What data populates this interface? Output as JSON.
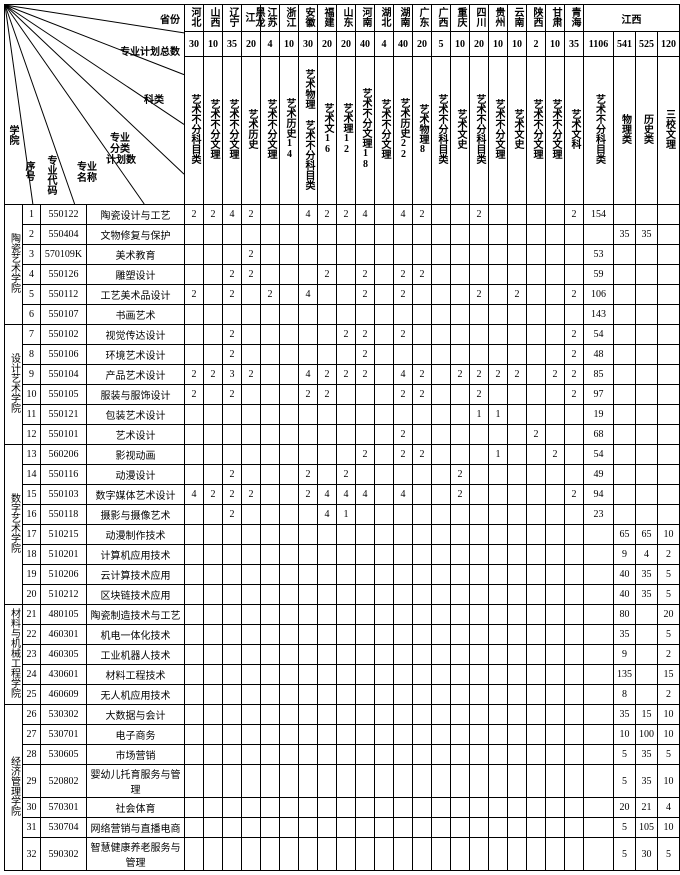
{
  "header_labels": {
    "province": "省份",
    "plan_total": "专业计划总数",
    "category": "科类",
    "sub_plan": "专业分类计划数",
    "major_name": "专业名称",
    "college": "学院",
    "seq": "序号",
    "code": "专业代码"
  },
  "provinces": [
    "河北",
    "山西",
    "辽宁",
    "黑龙江",
    "江苏",
    "浙江",
    "安徽",
    "福建",
    "山东",
    "河南",
    "湖北",
    "湖南",
    "广东",
    "广西",
    "重庆",
    "四川",
    "贵州",
    "云南",
    "陕西",
    "甘肃",
    "青海",
    "江西"
  ],
  "totals": [
    "30",
    "10",
    "35",
    "20",
    "4",
    "10",
    "30",
    "20",
    "20",
    "40",
    "4",
    "40",
    "20",
    "5",
    "10",
    "20",
    "10",
    "10",
    "2",
    "10",
    "35",
    "1106",
    "541",
    "525",
    "120"
  ],
  "categories": [
    "艺术不分科目类",
    "艺术不分文理",
    "艺术不分文理",
    "艺术历史",
    "艺术不分文理",
    "艺术历史14",
    "艺术物理 艺术不分科目类",
    "艺术文16",
    "艺术理12",
    "艺术不分文理18",
    "艺术不分文理",
    "艺术历史22",
    "艺术物理8",
    "艺术不分科目类",
    "艺术文史",
    "艺术不分科目类",
    "艺术不分文理",
    "艺术文史",
    "艺术不分文理",
    "艺术不分文理",
    "艺术文科",
    "艺术不分科目类",
    "物理类",
    "历史类",
    "三校文理"
  ],
  "colleges": [
    {
      "name": "陶瓷艺术学院",
      "rowspan": 6,
      "rows": [
        {
          "seq": 1,
          "code": "550122",
          "name": "陶瓷设计与工艺",
          "cells": [
            "2",
            "2",
            "4",
            "2",
            "",
            "",
            "4",
            "2",
            "2",
            "4",
            "",
            "4",
            "2",
            "",
            "",
            "2",
            "",
            "",
            "",
            "",
            "2",
            "154",
            "",
            "",
            ""
          ]
        },
        {
          "seq": 2,
          "code": "550404",
          "name": "文物修复与保护",
          "cells": [
            "",
            "",
            "",
            "",
            "",
            "",
            "",
            "",
            "",
            "",
            "",
            "",
            "",
            "",
            "",
            "",
            "",
            "",
            "",
            "",
            "",
            "",
            "35",
            "35",
            ""
          ]
        },
        {
          "seq": 3,
          "code": "570109K",
          "name": "美术教育",
          "cells": [
            "",
            "",
            "",
            "2",
            "",
            "",
            "",
            "",
            "",
            "",
            "",
            "",
            "",
            "",
            "",
            "",
            "",
            "",
            "",
            "",
            "",
            "53",
            "",
            "",
            ""
          ]
        },
        {
          "seq": 4,
          "code": "550126",
          "name": "雕塑设计",
          "cells": [
            "",
            "",
            "2",
            "2",
            "",
            "",
            "",
            "2",
            "",
            "2",
            "",
            "2",
            "2",
            "",
            "",
            "",
            "",
            "",
            "",
            "",
            "",
            "59",
            "",
            "",
            ""
          ]
        },
        {
          "seq": 5,
          "code": "550112",
          "name": "工艺美术品设计",
          "cells": [
            "2",
            "",
            "2",
            "",
            "2",
            "",
            "4",
            "",
            "",
            "2",
            "",
            "2",
            "",
            "",
            "",
            "2",
            "",
            "2",
            "",
            "",
            "2",
            "106",
            "",
            "",
            ""
          ]
        },
        {
          "seq": 6,
          "code": "550107",
          "name": "书画艺术",
          "cells": [
            "",
            "",
            "",
            "",
            "",
            "",
            "",
            "",
            "",
            "",
            "",
            "",
            "",
            "",
            "",
            "",
            "",
            "",
            "",
            "",
            "",
            "143",
            "",
            "",
            ""
          ]
        }
      ]
    },
    {
      "name": "设计艺术学院",
      "rowspan": 6,
      "rows": [
        {
          "seq": 7,
          "code": "550102",
          "name": "视觉传达设计",
          "cells": [
            "",
            "",
            "2",
            "",
            "",
            "",
            "",
            "",
            "2",
            "2",
            "",
            "2",
            "",
            "",
            "",
            "",
            "",
            "",
            "",
            "",
            "2",
            "54",
            "",
            "",
            ""
          ]
        },
        {
          "seq": 8,
          "code": "550106",
          "name": "环境艺术设计",
          "cells": [
            "",
            "",
            "2",
            "",
            "",
            "",
            "",
            "",
            "",
            "2",
            "",
            "",
            "",
            "",
            "",
            "",
            "",
            "",
            "",
            "",
            "2",
            "48",
            "",
            "",
            ""
          ]
        },
        {
          "seq": 9,
          "code": "550104",
          "name": "产品艺术设计",
          "cells": [
            "2",
            "2",
            "3",
            "2",
            "",
            "",
            "4",
            "2",
            "2",
            "2",
            "",
            "4",
            "2",
            "",
            "2",
            "2",
            "2",
            "2",
            "",
            "2",
            "2",
            "85",
            "",
            "",
            ""
          ]
        },
        {
          "seq": 10,
          "code": "550105",
          "name": "服装与服饰设计",
          "cells": [
            "2",
            "",
            "2",
            "",
            "",
            "",
            "2",
            "2",
            "",
            "",
            "",
            "2",
            "2",
            "",
            "",
            "2",
            "",
            "",
            "",
            "",
            "2",
            "97",
            "",
            "",
            ""
          ]
        },
        {
          "seq": 11,
          "code": "550121",
          "name": "包装艺术设计",
          "cells": [
            "",
            "",
            "",
            "",
            "",
            "",
            "",
            "",
            "",
            "",
            "",
            "",
            "",
            "",
            "",
            "1",
            "1",
            "",
            "",
            "",
            "",
            "19",
            "",
            "",
            ""
          ]
        },
        {
          "seq": 12,
          "code": "550101",
          "name": "艺术设计",
          "cells": [
            "",
            "",
            "",
            "",
            "",
            "",
            "",
            "",
            "",
            "",
            "",
            "2",
            "",
            "",
            "",
            "",
            "",
            "",
            "2",
            "",
            "",
            "68",
            "",
            "",
            ""
          ]
        }
      ]
    },
    {
      "name": "数字艺术学院",
      "rowspan": 8,
      "rows": [
        {
          "seq": 13,
          "code": "560206",
          "name": "影视动画",
          "cells": [
            "",
            "",
            "",
            "",
            "",
            "",
            "",
            "",
            "",
            "2",
            "",
            "2",
            "2",
            "",
            "",
            "",
            "1",
            "",
            "",
            "2",
            "",
            "54",
            "",
            "",
            ""
          ]
        },
        {
          "seq": 14,
          "code": "550116",
          "name": "动漫设计",
          "cells": [
            "",
            "",
            "2",
            "",
            "",
            "",
            "2",
            "",
            "2",
            "",
            "",
            "",
            "",
            "",
            "2",
            "",
            "",
            "",
            "",
            "",
            "",
            "49",
            "",
            "",
            ""
          ]
        },
        {
          "seq": 15,
          "code": "550103",
          "name": "数字媒体艺术设计",
          "cells": [
            "4",
            "2",
            "2",
            "2",
            "",
            "",
            "2",
            "4",
            "4",
            "4",
            "",
            "4",
            "",
            "",
            "2",
            "",
            "",
            "",
            "",
            "",
            "2",
            "94",
            "",
            "",
            ""
          ]
        },
        {
          "seq": 16,
          "code": "550118",
          "name": "摄影与摄像艺术",
          "cells": [
            "",
            "",
            "2",
            "",
            "",
            "",
            "",
            "4",
            "1",
            "",
            "",
            "",
            "",
            "",
            "",
            "",
            "",
            "",
            "",
            "",
            "",
            "23",
            "",
            "",
            ""
          ]
        },
        {
          "seq": 17,
          "code": "510215",
          "name": "动漫制作技术",
          "cells": [
            "",
            "",
            "",
            "",
            "",
            "",
            "",
            "",
            "",
            "",
            "",
            "",
            "",
            "",
            "",
            "",
            "",
            "",
            "",
            "",
            "",
            "",
            "65",
            "65",
            "10"
          ]
        },
        {
          "seq": 18,
          "code": "510201",
          "name": "计算机应用技术",
          "cells": [
            "",
            "",
            "",
            "",
            "",
            "",
            "",
            "",
            "",
            "",
            "",
            "",
            "",
            "",
            "",
            "",
            "",
            "",
            "",
            "",
            "",
            "",
            "9",
            "4",
            "2"
          ]
        },
        {
          "seq": 19,
          "code": "510206",
          "name": "云计算技术应用",
          "cells": [
            "",
            "",
            "",
            "",
            "",
            "",
            "",
            "",
            "",
            "",
            "",
            "",
            "",
            "",
            "",
            "",
            "",
            "",
            "",
            "",
            "",
            "",
            "40",
            "35",
            "5"
          ]
        },
        {
          "seq": 20,
          "code": "510212",
          "name": "区块链技术应用",
          "cells": [
            "",
            "",
            "",
            "",
            "",
            "",
            "",
            "",
            "",
            "",
            "",
            "",
            "",
            "",
            "",
            "",
            "",
            "",
            "",
            "",
            "",
            "",
            "40",
            "35",
            "5"
          ]
        }
      ]
    },
    {
      "name": "材料与机械工程学院",
      "rowspan": 5,
      "rows": [
        {
          "seq": 21,
          "code": "480105",
          "name": "陶瓷制造技术与工艺",
          "cells": [
            "",
            "",
            "",
            "",
            "",
            "",
            "",
            "",
            "",
            "",
            "",
            "",
            "",
            "",
            "",
            "",
            "",
            "",
            "",
            "",
            "",
            "",
            "80",
            "",
            "20"
          ]
        },
        {
          "seq": 22,
          "code": "460301",
          "name": "机电一体化技术",
          "cells": [
            "",
            "",
            "",
            "",
            "",
            "",
            "",
            "",
            "",
            "",
            "",
            "",
            "",
            "",
            "",
            "",
            "",
            "",
            "",
            "",
            "",
            "",
            "35",
            "",
            "5"
          ]
        },
        {
          "seq": 23,
          "code": "460305",
          "name": "工业机器人技术",
          "cells": [
            "",
            "",
            "",
            "",
            "",
            "",
            "",
            "",
            "",
            "",
            "",
            "",
            "",
            "",
            "",
            "",
            "",
            "",
            "",
            "",
            "",
            "",
            "9",
            "",
            "2"
          ]
        },
        {
          "seq": 24,
          "code": "430601",
          "name": "材料工程技术",
          "cells": [
            "",
            "",
            "",
            "",
            "",
            "",
            "",
            "",
            "",
            "",
            "",
            "",
            "",
            "",
            "",
            "",
            "",
            "",
            "",
            "",
            "",
            "",
            "135",
            "",
            "15"
          ]
        },
        {
          "seq": 25,
          "code": "460609",
          "name": "无人机应用技术",
          "cells": [
            "",
            "",
            "",
            "",
            "",
            "",
            "",
            "",
            "",
            "",
            "",
            "",
            "",
            "",
            "",
            "",
            "",
            "",
            "",
            "",
            "",
            "",
            "8",
            "",
            "2"
          ]
        }
      ]
    },
    {
      "name": "经济管理学院",
      "rowspan": 7,
      "rows": [
        {
          "seq": 26,
          "code": "530302",
          "name": "大数据与会计",
          "cells": [
            "",
            "",
            "",
            "",
            "",
            "",
            "",
            "",
            "",
            "",
            "",
            "",
            "",
            "",
            "",
            "",
            "",
            "",
            "",
            "",
            "",
            "",
            "35",
            "15",
            "10"
          ]
        },
        {
          "seq": 27,
          "code": "530701",
          "name": "电子商务",
          "cells": [
            "",
            "",
            "",
            "",
            "",
            "",
            "",
            "",
            "",
            "",
            "",
            "",
            "",
            "",
            "",
            "",
            "",
            "",
            "",
            "",
            "",
            "",
            "10",
            "100",
            "10"
          ]
        },
        {
          "seq": 28,
          "code": "530605",
          "name": "市场营销",
          "cells": [
            "",
            "",
            "",
            "",
            "",
            "",
            "",
            "",
            "",
            "",
            "",
            "",
            "",
            "",
            "",
            "",
            "",
            "",
            "",
            "",
            "",
            "",
            "5",
            "35",
            "5"
          ]
        },
        {
          "seq": 29,
          "code": "520802",
          "name": "婴幼儿托育服务与管理",
          "cells": [
            "",
            "",
            "",
            "",
            "",
            "",
            "",
            "",
            "",
            "",
            "",
            "",
            "",
            "",
            "",
            "",
            "",
            "",
            "",
            "",
            "",
            "",
            "5",
            "35",
            "10"
          ]
        },
        {
          "seq": 30,
          "code": "570301",
          "name": "社会体育",
          "cells": [
            "",
            "",
            "",
            "",
            "",
            "",
            "",
            "",
            "",
            "",
            "",
            "",
            "",
            "",
            "",
            "",
            "",
            "",
            "",
            "",
            "",
            "",
            "20",
            "21",
            "4"
          ]
        },
        {
          "seq": 31,
          "code": "530704",
          "name": "网络营销与直播电商",
          "cells": [
            "",
            "",
            "",
            "",
            "",
            "",
            "",
            "",
            "",
            "",
            "",
            "",
            "",
            "",
            "",
            "",
            "",
            "",
            "",
            "",
            "",
            "",
            "5",
            "105",
            "10"
          ]
        },
        {
          "seq": 32,
          "code": "590302",
          "name": "智慧健康养老服务与管理",
          "cells": [
            "",
            "",
            "",
            "",
            "",
            "",
            "",
            "",
            "",
            "",
            "",
            "",
            "",
            "",
            "",
            "",
            "",
            "",
            "",
            "",
            "",
            "",
            "5",
            "30",
            "5"
          ]
        }
      ]
    }
  ]
}
